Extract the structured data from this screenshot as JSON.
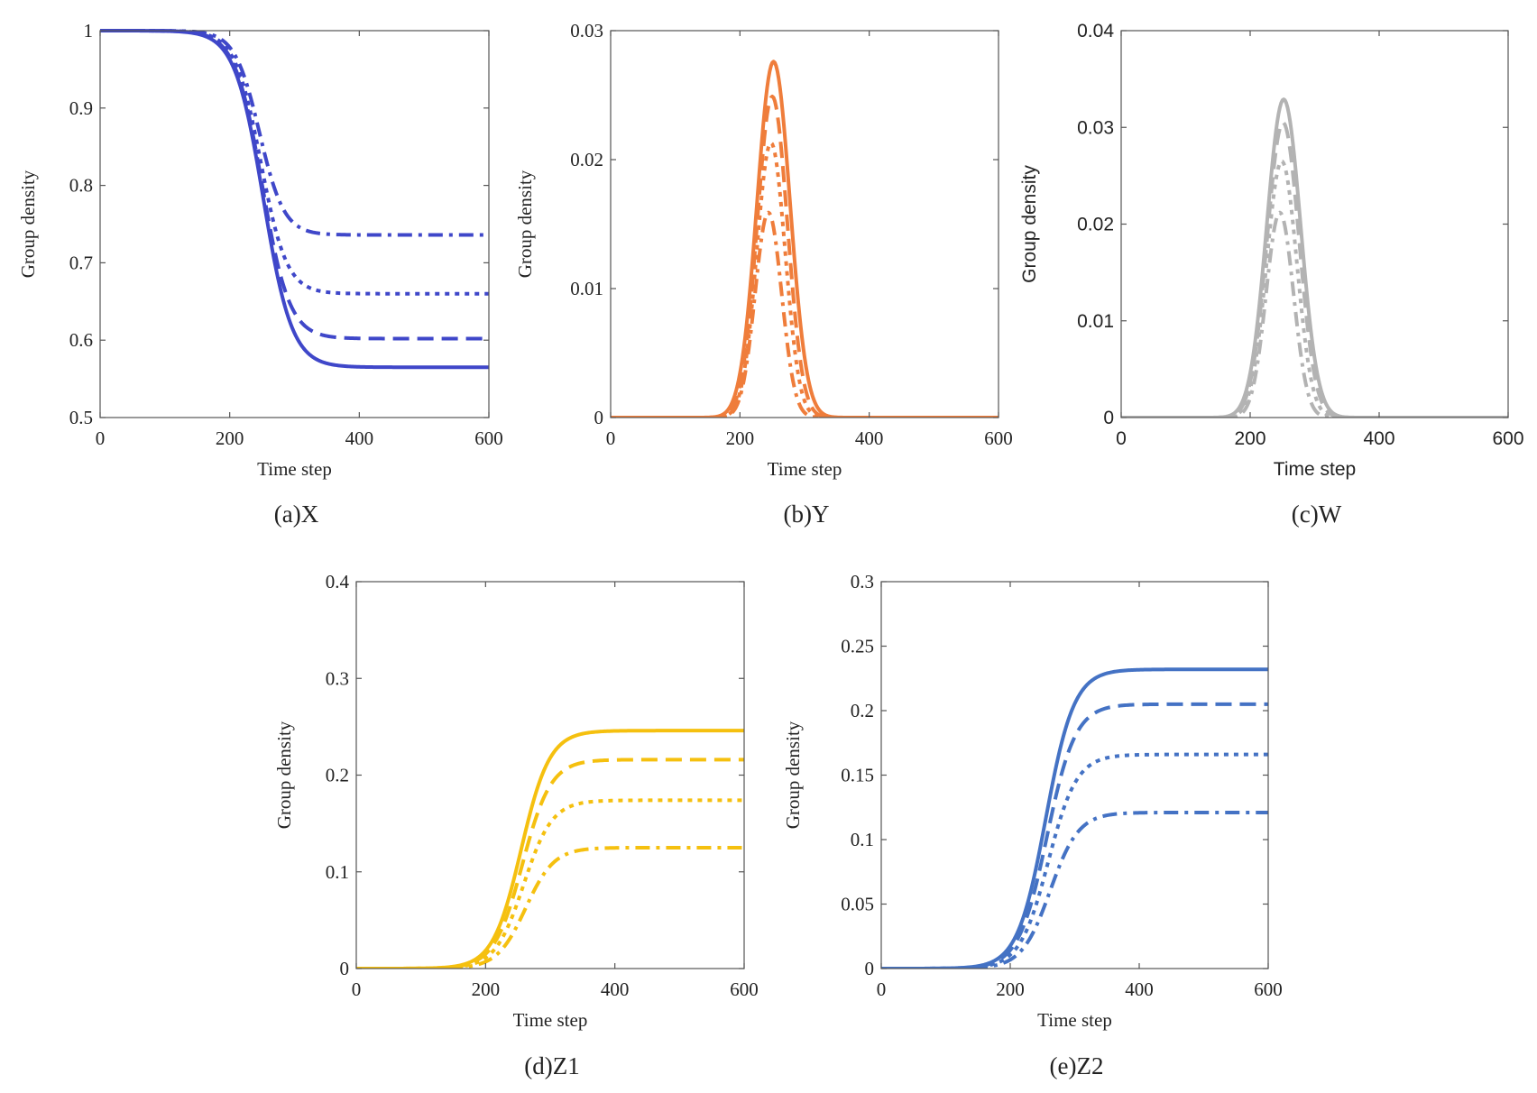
{
  "chart_data": [
    {
      "type": "line",
      "id": "a",
      "caption": "(a)X",
      "xlabel": "Time step",
      "ylabel": "Group density",
      "xlim": [
        0,
        600
      ],
      "ylim": [
        0.5,
        1
      ],
      "xticks": [
        0,
        200,
        400,
        600
      ],
      "yticks": [
        0.5,
        0.6,
        0.7,
        0.8,
        0.9,
        1
      ],
      "ytick_labels": [
        "0.5",
        "0.6",
        "0.7",
        "0.8",
        "0.9",
        "1"
      ],
      "color": "#3f47c9",
      "kind": "decline",
      "series": [
        {
          "name": "solid",
          "style": "solid",
          "start": 1,
          "end": 0.565,
          "t0": 252,
          "w": 22
        },
        {
          "name": "dashed",
          "style": "dashed",
          "start": 1,
          "end": 0.602,
          "t0": 250,
          "w": 21
        },
        {
          "name": "dotted",
          "style": "dotted",
          "start": 1,
          "end": 0.66,
          "t0": 248,
          "w": 20
        },
        {
          "name": "dashdot",
          "style": "dashdot",
          "start": 1,
          "end": 0.736,
          "t0": 246,
          "w": 19
        }
      ]
    },
    {
      "type": "line",
      "id": "b",
      "caption": "(b)Y",
      "xlabel": "Time step",
      "ylabel": "Group density",
      "xlim": [
        0,
        600
      ],
      "ylim": [
        0,
        0.03
      ],
      "xticks": [
        0,
        200,
        400,
        600
      ],
      "yticks": [
        0,
        0.01,
        0.02,
        0.03
      ],
      "ytick_labels": [
        "0",
        "0.01",
        "0.02",
        "0.03"
      ],
      "color": "#ef7d3b",
      "kind": "peak",
      "series": [
        {
          "name": "solid",
          "style": "solid",
          "peak": 0.0276,
          "t0": 252,
          "w": 36
        },
        {
          "name": "dashed",
          "style": "dashed",
          "peak": 0.0249,
          "t0": 250,
          "w": 33
        },
        {
          "name": "dotted",
          "style": "dotted",
          "peak": 0.0213,
          "t0": 248,
          "w": 31
        },
        {
          "name": "dashdot",
          "style": "dashdot",
          "peak": 0.0159,
          "t0": 244,
          "w": 29
        }
      ]
    },
    {
      "type": "line",
      "id": "c",
      "caption": "(c)W",
      "xlabel": "Time step",
      "ylabel": "Group density",
      "xlim": [
        0,
        600
      ],
      "ylim": [
        0,
        0.04
      ],
      "xticks": [
        0,
        200,
        400,
        600
      ],
      "yticks": [
        0,
        0.01,
        0.02,
        0.03,
        0.04
      ],
      "ytick_labels": [
        "0",
        "0.01",
        "0.02",
        "0.03",
        "0.04"
      ],
      "color": "#b3b3b3",
      "kind": "peak",
      "sans": true,
      "series": [
        {
          "name": "solid",
          "style": "solid",
          "peak": 0.0329,
          "t0": 252,
          "w": 37
        },
        {
          "name": "dashed",
          "style": "dashed",
          "peak": 0.0305,
          "t0": 251,
          "w": 35
        },
        {
          "name": "dotted",
          "style": "dotted",
          "peak": 0.0265,
          "t0": 249,
          "w": 33
        },
        {
          "name": "dashdot",
          "style": "dashdot",
          "peak": 0.0212,
          "t0": 246,
          "w": 30
        }
      ]
    },
    {
      "type": "line",
      "id": "d",
      "caption": "(d)Z1",
      "xlabel": "Time step",
      "ylabel": "Group density",
      "xlim": [
        0,
        600
      ],
      "ylim": [
        0,
        0.4
      ],
      "xticks": [
        0,
        200,
        400,
        600
      ],
      "yticks": [
        0,
        0.1,
        0.2,
        0.3,
        0.4
      ],
      "ytick_labels": [
        "0",
        "0.1",
        "0.2",
        "0.3",
        "0.4"
      ],
      "color": "#f5c00f",
      "kind": "rise",
      "series": [
        {
          "name": "solid",
          "style": "solid",
          "start": 0,
          "end": 0.246,
          "t0": 255,
          "w": 22
        },
        {
          "name": "dashed",
          "style": "dashed",
          "start": 0,
          "end": 0.216,
          "t0": 257,
          "w": 22
        },
        {
          "name": "dotted",
          "style": "dotted",
          "start": 0,
          "end": 0.174,
          "t0": 259,
          "w": 22
        },
        {
          "name": "dashdot",
          "style": "dashdot",
          "start": 0,
          "end": 0.125,
          "t0": 262,
          "w": 22
        }
      ]
    },
    {
      "type": "line",
      "id": "e",
      "caption": "(e)Z2",
      "xlabel": "Time step",
      "ylabel": "Group density",
      "xlim": [
        0,
        600
      ],
      "ylim": [
        0,
        0.3
      ],
      "xticks": [
        0,
        200,
        400,
        600
      ],
      "yticks": [
        0,
        0.05,
        0.1,
        0.15,
        0.2,
        0.25,
        0.3
      ],
      "ytick_labels": [
        "0",
        "0.05",
        "0.1",
        "0.15",
        "0.2",
        "0.25",
        "0.3"
      ],
      "color": "#4472c4",
      "kind": "rise",
      "series": [
        {
          "name": "solid",
          "style": "solid",
          "start": 0,
          "end": 0.232,
          "t0": 255,
          "w": 22
        },
        {
          "name": "dashed",
          "style": "dashed",
          "start": 0,
          "end": 0.205,
          "t0": 257,
          "w": 22
        },
        {
          "name": "dotted",
          "style": "dotted",
          "start": 0,
          "end": 0.166,
          "t0": 259,
          "w": 22
        },
        {
          "name": "dashdot",
          "style": "dashdot",
          "start": 0,
          "end": 0.121,
          "t0": 262,
          "w": 22
        }
      ]
    }
  ]
}
